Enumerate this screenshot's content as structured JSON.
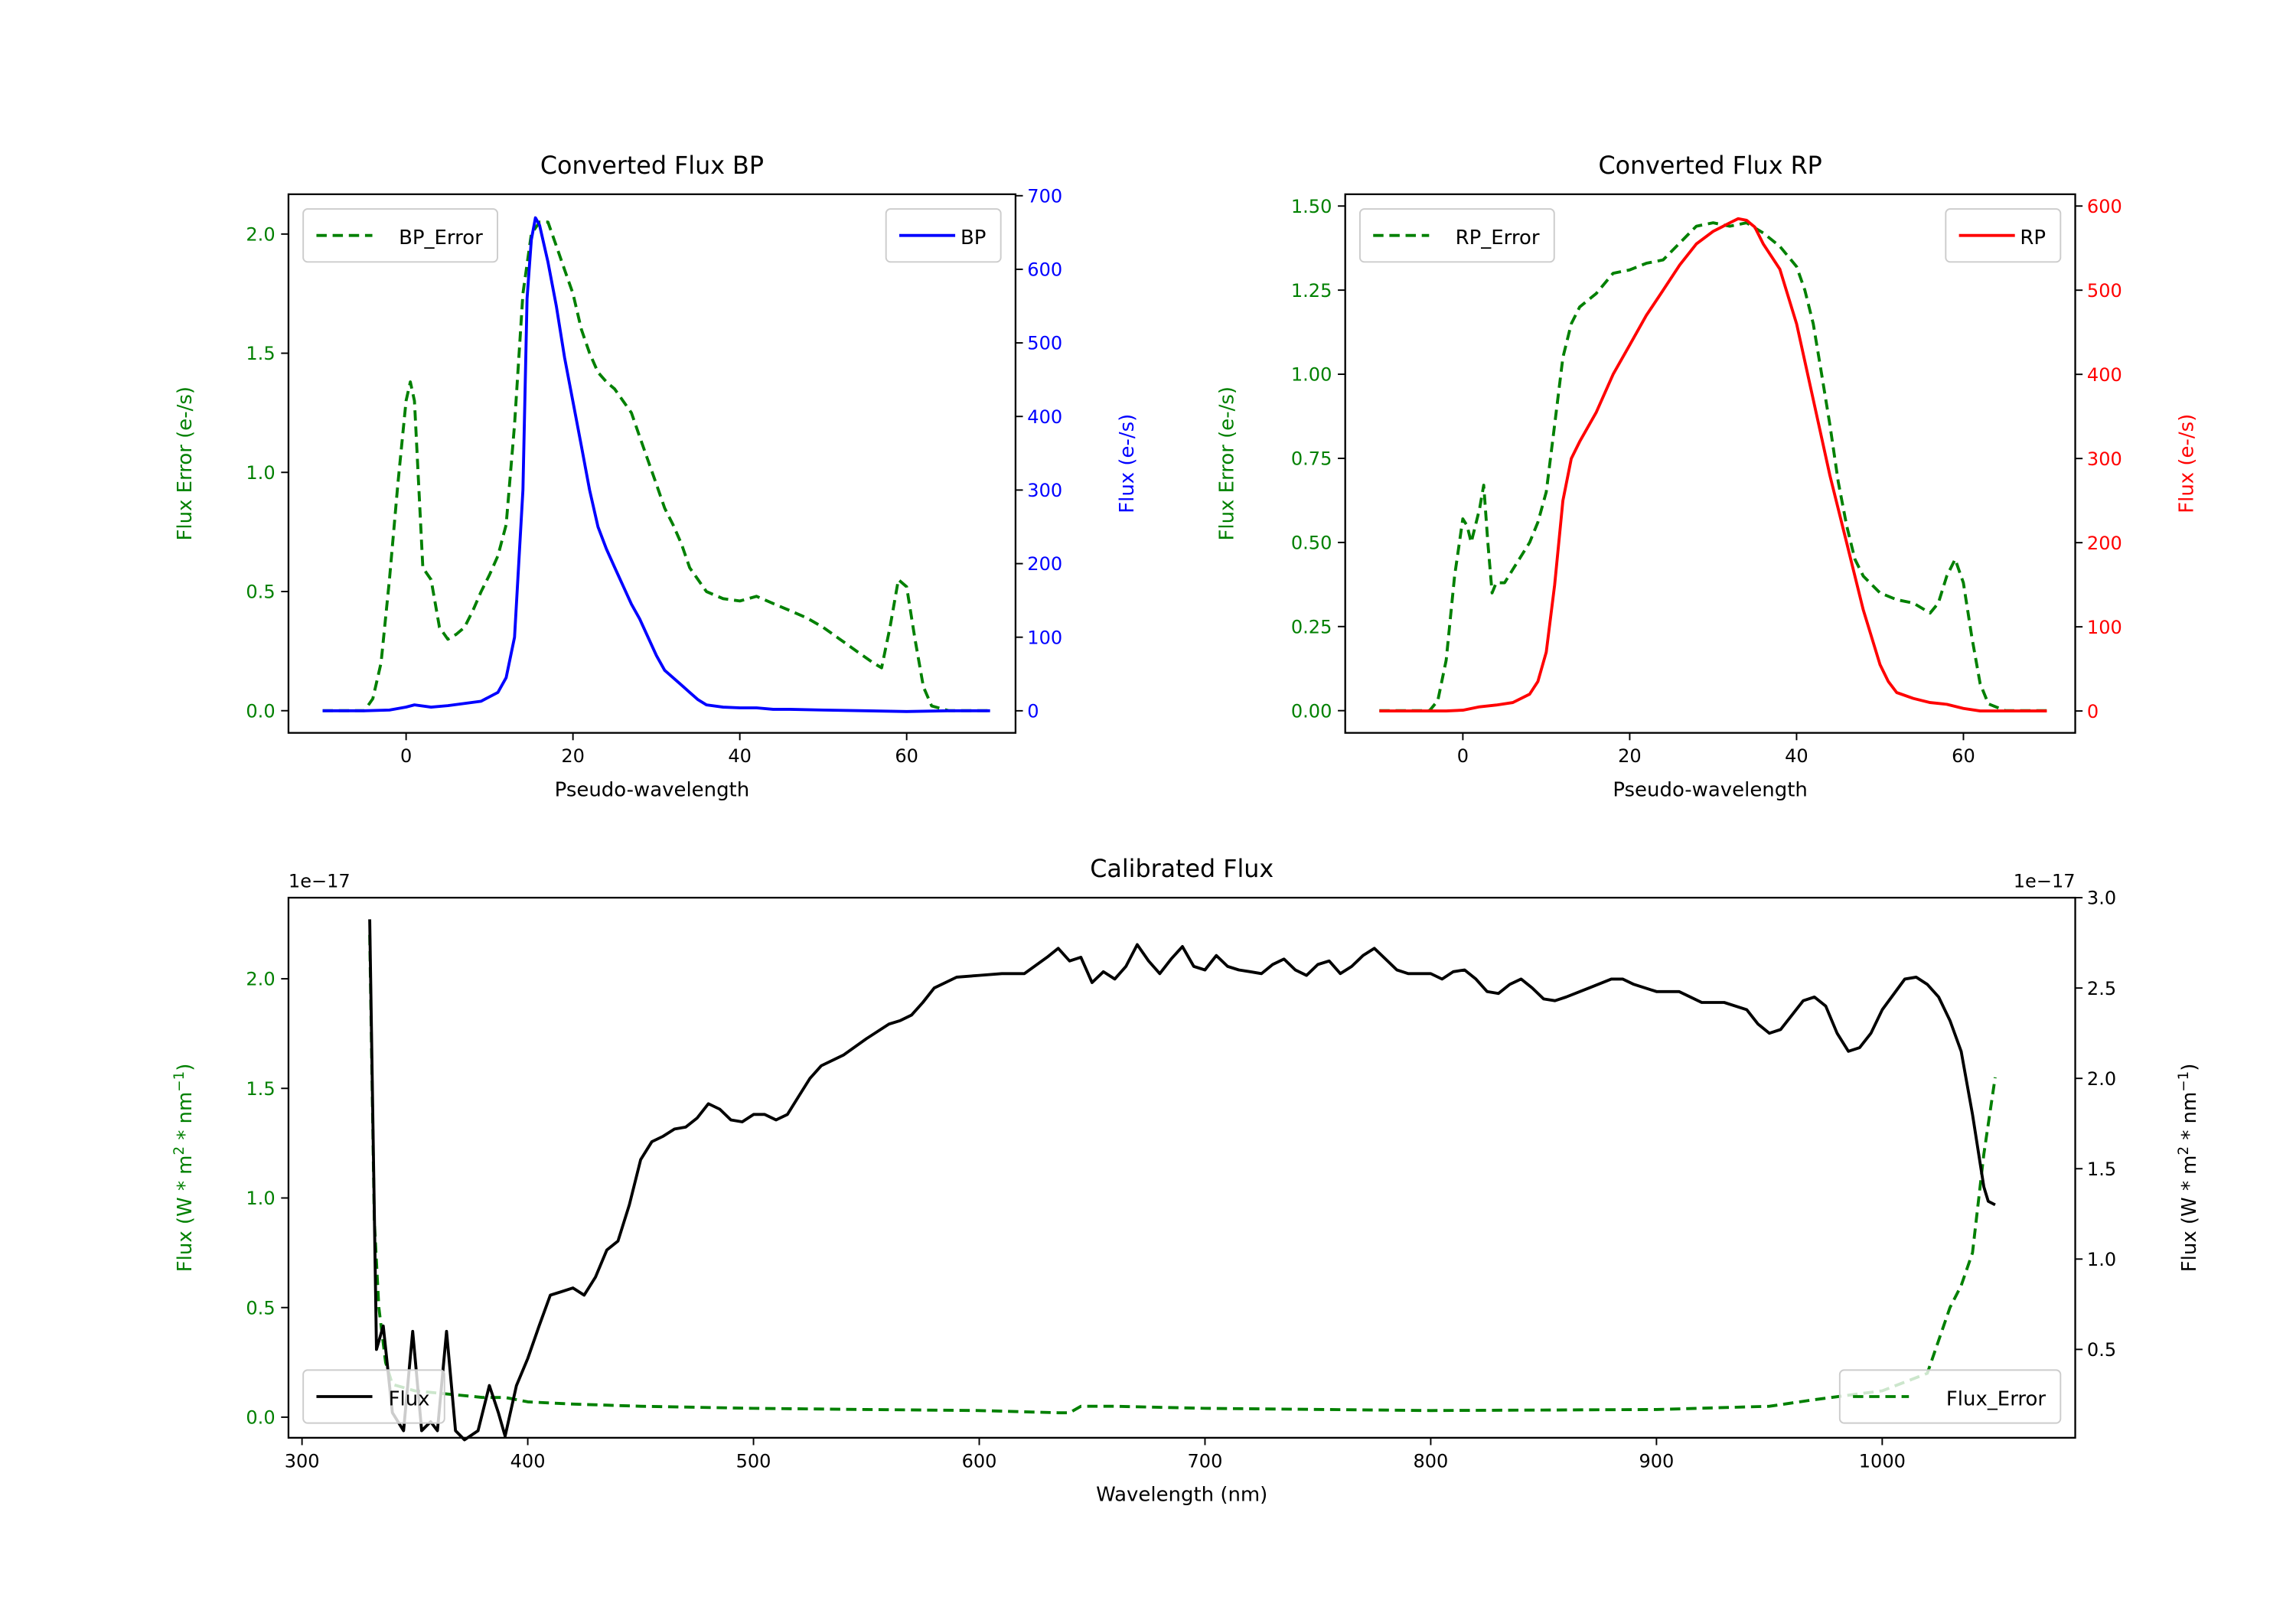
{
  "chart_data": [
    {
      "type": "line",
      "title": "Converted Flux BP",
      "xlabel": "Pseudo-wavelength",
      "ylabel": "Flux Error (e-/s)",
      "y2label": "Flux (e-/s)",
      "ylabel_color": "#008000",
      "y2label_color": "#0000ff",
      "xlim": [
        -14.1,
        73.05
      ],
      "ylim": [
        -0.093,
        2.167
      ],
      "y2lim": [
        -30,
        702
      ],
      "xticks": [
        0,
        20,
        40,
        60
      ],
      "xtick_labels": [
        "0",
        "20",
        "40",
        "60"
      ],
      "yticks": [
        0,
        0.5,
        1.0,
        1.5,
        2.0
      ],
      "ytick_labels": [
        "0.0",
        "0.5",
        "1.0",
        "1.5",
        "2.0"
      ],
      "y2ticks": [
        0,
        100,
        200,
        300,
        400,
        500,
        600,
        700
      ],
      "y2tick_labels": [
        "0",
        "100",
        "200",
        "300",
        "400",
        "500",
        "600",
        "700"
      ],
      "legend": [
        {
          "series": "BP_Error",
          "placement": "upper left"
        },
        {
          "series": "BP",
          "placement": "upper right"
        }
      ],
      "series": [
        {
          "name": "BP_Error",
          "axis": "left",
          "style": "dashed",
          "color": "#008000",
          "x": [
            -10,
            -5,
            -4,
            -3,
            -2,
            -1,
            0,
            0.5,
            1,
            2,
            3,
            4,
            5,
            6,
            7,
            8,
            9,
            10,
            11,
            12,
            13,
            14,
            15,
            16,
            17,
            18,
            19,
            20,
            21,
            22,
            23,
            24,
            25,
            26,
            27,
            28,
            29,
            30,
            31,
            32,
            33,
            34,
            35,
            36,
            38,
            40,
            42,
            44,
            46,
            48,
            50,
            52,
            54,
            56,
            57,
            58,
            59,
            60,
            61,
            62,
            63,
            65,
            70
          ],
          "y": [
            0,
            0,
            0.05,
            0.2,
            0.55,
            0.95,
            1.3,
            1.38,
            1.3,
            0.6,
            0.55,
            0.35,
            0.3,
            0.32,
            0.35,
            0.42,
            0.5,
            0.57,
            0.65,
            0.78,
            1.2,
            1.75,
            2.0,
            2.05,
            2.05,
            1.95,
            1.85,
            1.75,
            1.6,
            1.5,
            1.42,
            1.38,
            1.35,
            1.3,
            1.25,
            1.15,
            1.05,
            0.95,
            0.85,
            0.78,
            0.7,
            0.6,
            0.55,
            0.5,
            0.47,
            0.46,
            0.48,
            0.45,
            0.42,
            0.39,
            0.35,
            0.3,
            0.25,
            0.2,
            0.18,
            0.35,
            0.55,
            0.52,
            0.3,
            0.1,
            0.02,
            0,
            0
          ]
        },
        {
          "name": "BP",
          "axis": "right",
          "style": "solid",
          "color": "#0000ff",
          "x": [
            -10,
            -5,
            -2,
            0,
            1,
            3,
            5,
            7,
            9,
            11,
            12,
            13,
            14,
            14.5,
            15,
            15.5,
            16,
            17,
            18,
            19,
            20,
            21,
            22,
            23,
            24,
            25,
            26,
            27,
            28,
            29,
            30,
            31,
            32,
            33,
            34,
            35,
            36,
            38,
            40,
            42,
            44,
            46,
            50,
            55,
            60,
            65,
            70
          ],
          "y": [
            0,
            0,
            1,
            5,
            8,
            5,
            7,
            10,
            13,
            25,
            45,
            100,
            300,
            560,
            640,
            670,
            660,
            610,
            550,
            480,
            420,
            360,
            300,
            250,
            220,
            195,
            170,
            145,
            125,
            100,
            75,
            55,
            45,
            35,
            25,
            15,
            8,
            5,
            4,
            4,
            2,
            2,
            1,
            0,
            -1,
            0,
            0
          ]
        }
      ]
    },
    {
      "type": "line",
      "title": "Converted Flux RP",
      "xlabel": "Pseudo-wavelength",
      "ylabel": "Flux Error (e-/s)",
      "y2label": "Flux (e-/s)",
      "ylabel_color": "#008000",
      "y2label_color": "#ff0000",
      "xlim": [
        -14.1,
        73.4
      ],
      "ylim": [
        -0.066,
        1.535
      ],
      "y2lim": [
        -26,
        614
      ],
      "xticks": [
        0,
        20,
        40,
        60
      ],
      "xtick_labels": [
        "0",
        "20",
        "40",
        "60"
      ],
      "yticks": [
        0,
        0.25,
        0.5,
        0.75,
        1.0,
        1.25,
        1.5
      ],
      "ytick_labels": [
        "0.00",
        "0.25",
        "0.50",
        "0.75",
        "1.00",
        "1.25",
        "1.50"
      ],
      "y2ticks": [
        0,
        100,
        200,
        300,
        400,
        500,
        600
      ],
      "y2tick_labels": [
        "0",
        "100",
        "200",
        "300",
        "400",
        "500",
        "600"
      ],
      "legend": [
        {
          "series": "RP_Error",
          "placement": "upper left"
        },
        {
          "series": "RP",
          "placement": "upper right"
        }
      ],
      "series": [
        {
          "name": "RP_Error",
          "axis": "left",
          "style": "dashed",
          "color": "#008000",
          "x": [
            -10,
            -4,
            -3,
            -2,
            -1,
            0,
            0.5,
            1,
            2,
            2.5,
            3,
            3.5,
            4,
            5,
            6,
            7,
            8,
            9,
            10,
            11,
            12,
            13,
            14,
            16,
            18,
            20,
            22,
            24,
            26,
            28,
            30,
            32,
            34,
            36,
            38,
            40,
            41,
            42,
            43,
            44,
            45,
            46,
            47,
            48,
            50,
            52,
            54,
            56,
            57,
            58,
            59,
            60,
            61,
            62,
            63,
            65,
            70
          ],
          "y": [
            0,
            0,
            0.03,
            0.15,
            0.4,
            0.57,
            0.55,
            0.5,
            0.6,
            0.67,
            0.5,
            0.35,
            0.38,
            0.38,
            0.42,
            0.46,
            0.5,
            0.56,
            0.65,
            0.85,
            1.05,
            1.15,
            1.2,
            1.24,
            1.3,
            1.31,
            1.33,
            1.34,
            1.39,
            1.44,
            1.45,
            1.44,
            1.45,
            1.42,
            1.38,
            1.32,
            1.25,
            1.15,
            1.0,
            0.85,
            0.68,
            0.55,
            0.45,
            0.4,
            0.35,
            0.33,
            0.32,
            0.29,
            0.32,
            0.4,
            0.45,
            0.38,
            0.22,
            0.08,
            0.02,
            0,
            0
          ]
        },
        {
          "name": "RP",
          "axis": "right",
          "style": "solid",
          "color": "#ff0000",
          "x": [
            -10,
            -2,
            0,
            2,
            4,
            6,
            8,
            9,
            10,
            11,
            12,
            13,
            14,
            16,
            18,
            20,
            22,
            24,
            26,
            28,
            30,
            31,
            32,
            33,
            34,
            35,
            36,
            38,
            40,
            42,
            44,
            46,
            48,
            50,
            51,
            52,
            54,
            56,
            58,
            60,
            62,
            70
          ],
          "y": [
            0,
            0,
            1,
            5,
            7,
            10,
            20,
            35,
            70,
            150,
            250,
            300,
            320,
            355,
            400,
            435,
            470,
            500,
            530,
            555,
            570,
            575,
            580,
            585,
            583,
            575,
            555,
            525,
            460,
            370,
            280,
            200,
            120,
            55,
            35,
            22,
            15,
            10,
            8,
            3,
            0,
            0
          ]
        }
      ]
    },
    {
      "type": "line",
      "title": "Calibrated Flux",
      "xlabel": "Wavelength (nm)",
      "ylabel": "Flux (W * m$^2$ * nm$^{-1}$)",
      "ylabel_parts": [
        "Flux (W * m",
        "2",
        " * nm",
        "−1",
        ")"
      ],
      "y2label_parts": [
        "Flux (W * m",
        "2",
        " * nm",
        "−1",
        ")"
      ],
      "ylabel_color": "#008000",
      "y2label_color": "#000000",
      "offset_left": "1e−17",
      "offset_right": "1e−17",
      "xlim": [
        294,
        1085.5
      ],
      "ylim": [
        -0.094,
        2.37
      ],
      "y2lim": [
        0.011,
        3.0
      ],
      "xticks": [
        300,
        400,
        500,
        600,
        700,
        800,
        900,
        1000
      ],
      "xtick_labels": [
        "300",
        "400",
        "500",
        "600",
        "700",
        "800",
        "900",
        "1000"
      ],
      "yticks": [
        0,
        0.5,
        1.0,
        1.5,
        2.0
      ],
      "ytick_labels": [
        "0.0",
        "0.5",
        "1.0",
        "1.5",
        "2.0"
      ],
      "y2ticks": [
        0.5,
        1.0,
        1.5,
        2.0,
        2.5,
        3.0
      ],
      "y2tick_labels": [
        "0.5",
        "1.0",
        "1.5",
        "2.0",
        "2.5",
        "3.0"
      ],
      "legend": [
        {
          "series": "Flux",
          "placement": "lower left"
        },
        {
          "series": "Flux_Error",
          "placement": "lower right"
        }
      ],
      "series": [
        {
          "name": "Flux_Error",
          "axis": "left",
          "style": "dashed",
          "color": "#008000",
          "x": [
            330,
            332,
            334,
            337,
            340,
            350,
            370,
            380,
            390,
            400,
            420,
            450,
            500,
            550,
            600,
            635,
            640,
            645,
            660,
            700,
            800,
            900,
            950,
            970,
            1000,
            1020,
            1030,
            1035,
            1040,
            1045,
            1050
          ],
          "y": [
            2.2,
            0.9,
            0.5,
            0.25,
            0.15,
            0.12,
            0.1,
            0.09,
            0.09,
            0.07,
            0.06,
            0.05,
            0.04,
            0.035,
            0.03,
            0.02,
            0.02,
            0.05,
            0.05,
            0.04,
            0.03,
            0.035,
            0.05,
            0.08,
            0.12,
            0.2,
            0.5,
            0.6,
            0.75,
            1.2,
            1.55
          ]
        },
        {
          "name": "Flux",
          "axis": "right",
          "style": "solid",
          "color": "#000000",
          "x": [
            330,
            333,
            336,
            340,
            345,
            349,
            353,
            357,
            360,
            364,
            368,
            372,
            378,
            383,
            387,
            390,
            395,
            400,
            405,
            410,
            415,
            420,
            425,
            430,
            435,
            440,
            445,
            450,
            455,
            460,
            465,
            470,
            475,
            480,
            485,
            490,
            495,
            500,
            505,
            510,
            515,
            520,
            525,
            530,
            540,
            550,
            560,
            565,
            570,
            575,
            580,
            590,
            600,
            610,
            620,
            630,
            635,
            640,
            645,
            650,
            655,
            660,
            665,
            670,
            675,
            680,
            685,
            690,
            695,
            700,
            705,
            710,
            715,
            720,
            725,
            730,
            735,
            740,
            745,
            750,
            755,
            760,
            765,
            770,
            775,
            780,
            785,
            790,
            800,
            805,
            810,
            815,
            820,
            825,
            830,
            835,
            840,
            845,
            850,
            855,
            860,
            870,
            880,
            885,
            890,
            900,
            910,
            920,
            925,
            930,
            940,
            945,
            950,
            955,
            960,
            965,
            970,
            975,
            980,
            985,
            990,
            995,
            1000,
            1010,
            1015,
            1020,
            1025,
            1030,
            1035,
            1040,
            1045,
            1047,
            1050
          ],
          "y": [
            2.88,
            0.5,
            0.63,
            0.15,
            0.05,
            0.6,
            0.05,
            0.1,
            0.05,
            0.6,
            0.05,
            0.0,
            0.05,
            0.3,
            0.15,
            0.02,
            0.3,
            0.45,
            0.63,
            0.8,
            0.82,
            0.84,
            0.8,
            0.9,
            1.05,
            1.1,
            1.3,
            1.55,
            1.65,
            1.68,
            1.72,
            1.73,
            1.78,
            1.86,
            1.83,
            1.77,
            1.76,
            1.8,
            1.8,
            1.77,
            1.8,
            1.9,
            2.0,
            2.07,
            2.13,
            2.22,
            2.3,
            2.32,
            2.35,
            2.42,
            2.5,
            2.56,
            2.57,
            2.58,
            2.58,
            2.67,
            2.72,
            2.65,
            2.67,
            2.53,
            2.59,
            2.55,
            2.62,
            2.74,
            2.65,
            2.58,
            2.66,
            2.73,
            2.62,
            2.6,
            2.68,
            2.62,
            2.6,
            2.59,
            2.58,
            2.63,
            2.66,
            2.6,
            2.57,
            2.63,
            2.65,
            2.58,
            2.62,
            2.68,
            2.72,
            2.66,
            2.6,
            2.58,
            2.58,
            2.55,
            2.59,
            2.6,
            2.55,
            2.48,
            2.47,
            2.52,
            2.55,
            2.5,
            2.44,
            2.43,
            2.45,
            2.5,
            2.55,
            2.55,
            2.52,
            2.48,
            2.48,
            2.42,
            2.42,
            2.42,
            2.38,
            2.3,
            2.25,
            2.27,
            2.35,
            2.43,
            2.45,
            2.4,
            2.25,
            2.15,
            2.17,
            2.25,
            2.38,
            2.55,
            2.56,
            2.52,
            2.45,
            2.32,
            2.15,
            1.8,
            1.4,
            1.32,
            1.3
          ]
        }
      ]
    }
  ]
}
